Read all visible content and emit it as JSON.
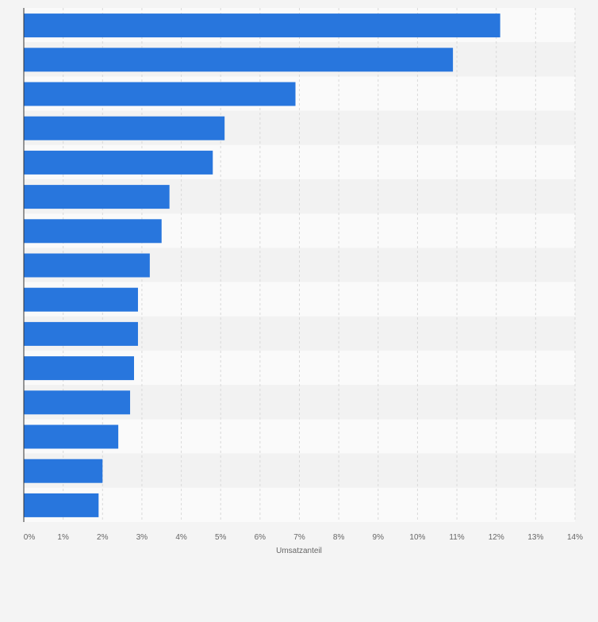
{
  "chart_data": {
    "type": "bar",
    "orientation": "horizontal",
    "title": "",
    "xlabel": "Umsatzanteil",
    "ylabel": "",
    "categories": [
      "",
      "",
      "",
      "",
      "",
      "",
      "",
      "",
      "",
      "",
      "",
      "",
      "",
      "",
      ""
    ],
    "values": [
      12.1,
      10.9,
      6.9,
      5.1,
      4.8,
      3.7,
      3.5,
      3.2,
      2.9,
      2.9,
      2.8,
      2.7,
      2.4,
      2.0,
      1.9
    ],
    "xlim": [
      0,
      14
    ],
    "ticks": [
      "0%",
      "1%",
      "2%",
      "3%",
      "4%",
      "5%",
      "6%",
      "7%",
      "8%",
      "9%",
      "10%",
      "11%",
      "12%",
      "13%",
      "14%"
    ],
    "grid": true,
    "legend": "none",
    "colors": {
      "bar": "#2876dd",
      "background": "#f4f4f4",
      "band_light": "#fafafa",
      "band_dark": "#f2f2f2",
      "grid": "#d9d9d9",
      "axis": "#333333",
      "tick_text": "#666666"
    }
  }
}
